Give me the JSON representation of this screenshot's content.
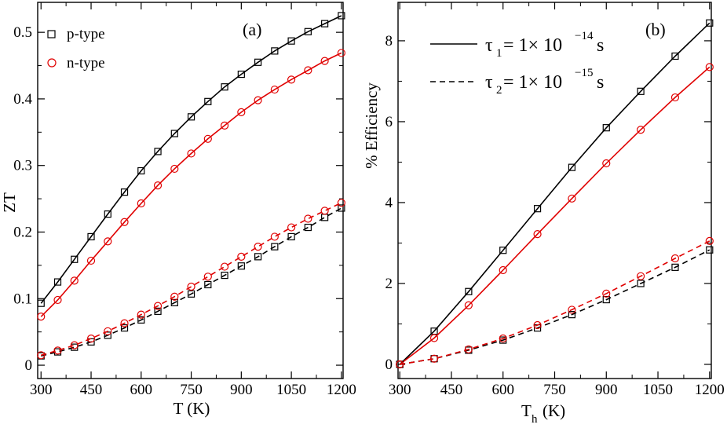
{
  "chart_data": [
    {
      "id": "a",
      "type": "line",
      "panel_label": "(a)",
      "xlabel": "T (K)",
      "ylabel": "ZT",
      "xlim": [
        290,
        1205
      ],
      "ylim": [
        -0.02,
        0.545
      ],
      "xticks": [
        300,
        450,
        600,
        750,
        900,
        1050,
        1200
      ],
      "xtick_labels": [
        "300",
        "450",
        "600",
        "750",
        "900",
        "1050",
        "1200"
      ],
      "yticks": [
        0,
        0.1,
        0.2,
        0.3,
        0.4,
        0.5
      ],
      "ytick_labels": [
        "0",
        "0.1",
        "0.2",
        "0.3",
        "0.4",
        "0.5"
      ],
      "legend": {
        "position": "top-left",
        "entries": [
          {
            "label": "p-type",
            "marker": "square",
            "color": "#000000"
          },
          {
            "label": "n-type",
            "marker": "circle",
            "color": "#e00000"
          }
        ]
      },
      "x": [
        300,
        350,
        400,
        450,
        500,
        550,
        600,
        650,
        700,
        750,
        800,
        850,
        900,
        950,
        1000,
        1050,
        1100,
        1150,
        1200
      ],
      "series": [
        {
          "name": "p-type, τ1",
          "color": "#000000",
          "marker": "square",
          "dash": "solid",
          "values": [
            0.093,
            0.125,
            0.159,
            0.193,
            0.227,
            0.26,
            0.292,
            0.321,
            0.348,
            0.373,
            0.396,
            0.418,
            0.437,
            0.455,
            0.472,
            0.487,
            0.501,
            0.513,
            0.525
          ]
        },
        {
          "name": "n-type, τ1",
          "color": "#e00000",
          "marker": "circle",
          "dash": "solid",
          "values": [
            0.073,
            0.098,
            0.127,
            0.157,
            0.186,
            0.215,
            0.243,
            0.27,
            0.295,
            0.318,
            0.34,
            0.36,
            0.38,
            0.398,
            0.414,
            0.429,
            0.443,
            0.457,
            0.469
          ]
        },
        {
          "name": "p-type, τ2",
          "color": "#000000",
          "marker": "square",
          "dash": "dashed",
          "values": [
            0.014,
            0.02,
            0.027,
            0.035,
            0.045,
            0.056,
            0.068,
            0.081,
            0.094,
            0.107,
            0.121,
            0.135,
            0.149,
            0.163,
            0.178,
            0.193,
            0.207,
            0.222,
            0.236
          ]
        },
        {
          "name": "n-type, τ2",
          "color": "#e00000",
          "marker": "circle",
          "dash": "dashed",
          "values": [
            0.015,
            0.022,
            0.03,
            0.04,
            0.051,
            0.063,
            0.076,
            0.089,
            0.103,
            0.118,
            0.133,
            0.148,
            0.163,
            0.178,
            0.193,
            0.207,
            0.22,
            0.232,
            0.244
          ]
        }
      ]
    },
    {
      "id": "b",
      "type": "line",
      "panel_label": "(b)",
      "xlabel": "T",
      "xlabel_sub": "h",
      "xlabel_unit": "(K)",
      "ylabel": "% Efficiency",
      "xlim": [
        295,
        1205
      ],
      "ylim": [
        -0.35,
        8.95
      ],
      "xticks": [
        300,
        450,
        600,
        750,
        900,
        1050,
        1200
      ],
      "xtick_labels": [
        "300",
        "450",
        "600",
        "750",
        "900",
        "1050",
        "1200"
      ],
      "yticks": [
        0,
        2,
        4,
        6,
        8
      ],
      "ytick_labels": [
        "0",
        "2",
        "4",
        "6",
        "8"
      ],
      "legend": {
        "position": "top-left",
        "entries": [
          {
            "symbol": "τ",
            "sub": "1",
            "eq": "= 1× 10",
            "exp": "−14",
            "unit": "s",
            "dash": "solid"
          },
          {
            "symbol": "τ",
            "sub": "2",
            "eq": "= 1× 10",
            "exp": "−15",
            "unit": "s",
            "dash": "dashed"
          }
        ]
      },
      "x": [
        300,
        400,
        500,
        600,
        700,
        800,
        900,
        1000,
        1100,
        1200
      ],
      "series": [
        {
          "name": "p-type, τ1",
          "color": "#000000",
          "marker": "square",
          "dash": "solid",
          "values": [
            0.0,
            0.82,
            1.8,
            2.82,
            3.85,
            4.87,
            5.85,
            6.75,
            7.62,
            8.44
          ]
        },
        {
          "name": "n-type, τ1",
          "color": "#e00000",
          "marker": "circle",
          "dash": "solid",
          "values": [
            0.0,
            0.65,
            1.46,
            2.33,
            3.22,
            4.1,
            4.97,
            5.8,
            6.6,
            7.35
          ]
        },
        {
          "name": "p-type, τ2",
          "color": "#000000",
          "marker": "square",
          "dash": "dashed",
          "values": [
            0.0,
            0.14,
            0.35,
            0.6,
            0.9,
            1.23,
            1.6,
            2.0,
            2.4,
            2.83
          ]
        },
        {
          "name": "n-type, τ2",
          "color": "#e00000",
          "marker": "circle",
          "dash": "dashed",
          "values": [
            0.0,
            0.14,
            0.37,
            0.64,
            0.97,
            1.35,
            1.75,
            2.18,
            2.62,
            3.05
          ]
        }
      ]
    }
  ]
}
